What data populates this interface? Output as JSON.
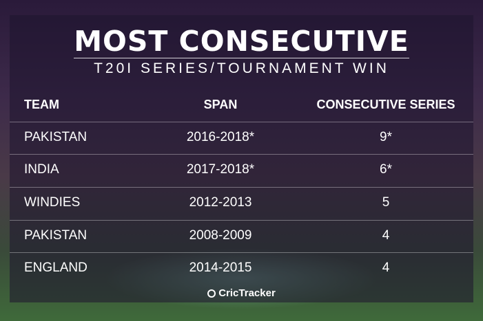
{
  "header": {
    "title": "MOST CONSECUTIVE",
    "subtitle": "T20I SERIES/TOURNAMENT WIN"
  },
  "table": {
    "columns": [
      "TEAM",
      "SPAN",
      "CONSECUTIVE SERIES"
    ],
    "rows": [
      [
        "PAKISTAN",
        "2016-2018*",
        "9*"
      ],
      [
        "INDIA",
        "2017-2018*",
        "6*"
      ],
      [
        "WINDIES",
        "2012-2013",
        "5"
      ],
      [
        "PAKISTAN",
        "2008-2009",
        "4"
      ],
      [
        "ENGLAND",
        "2014-2015",
        "4"
      ]
    ]
  },
  "footer": {
    "brand": "CricTracker"
  }
}
